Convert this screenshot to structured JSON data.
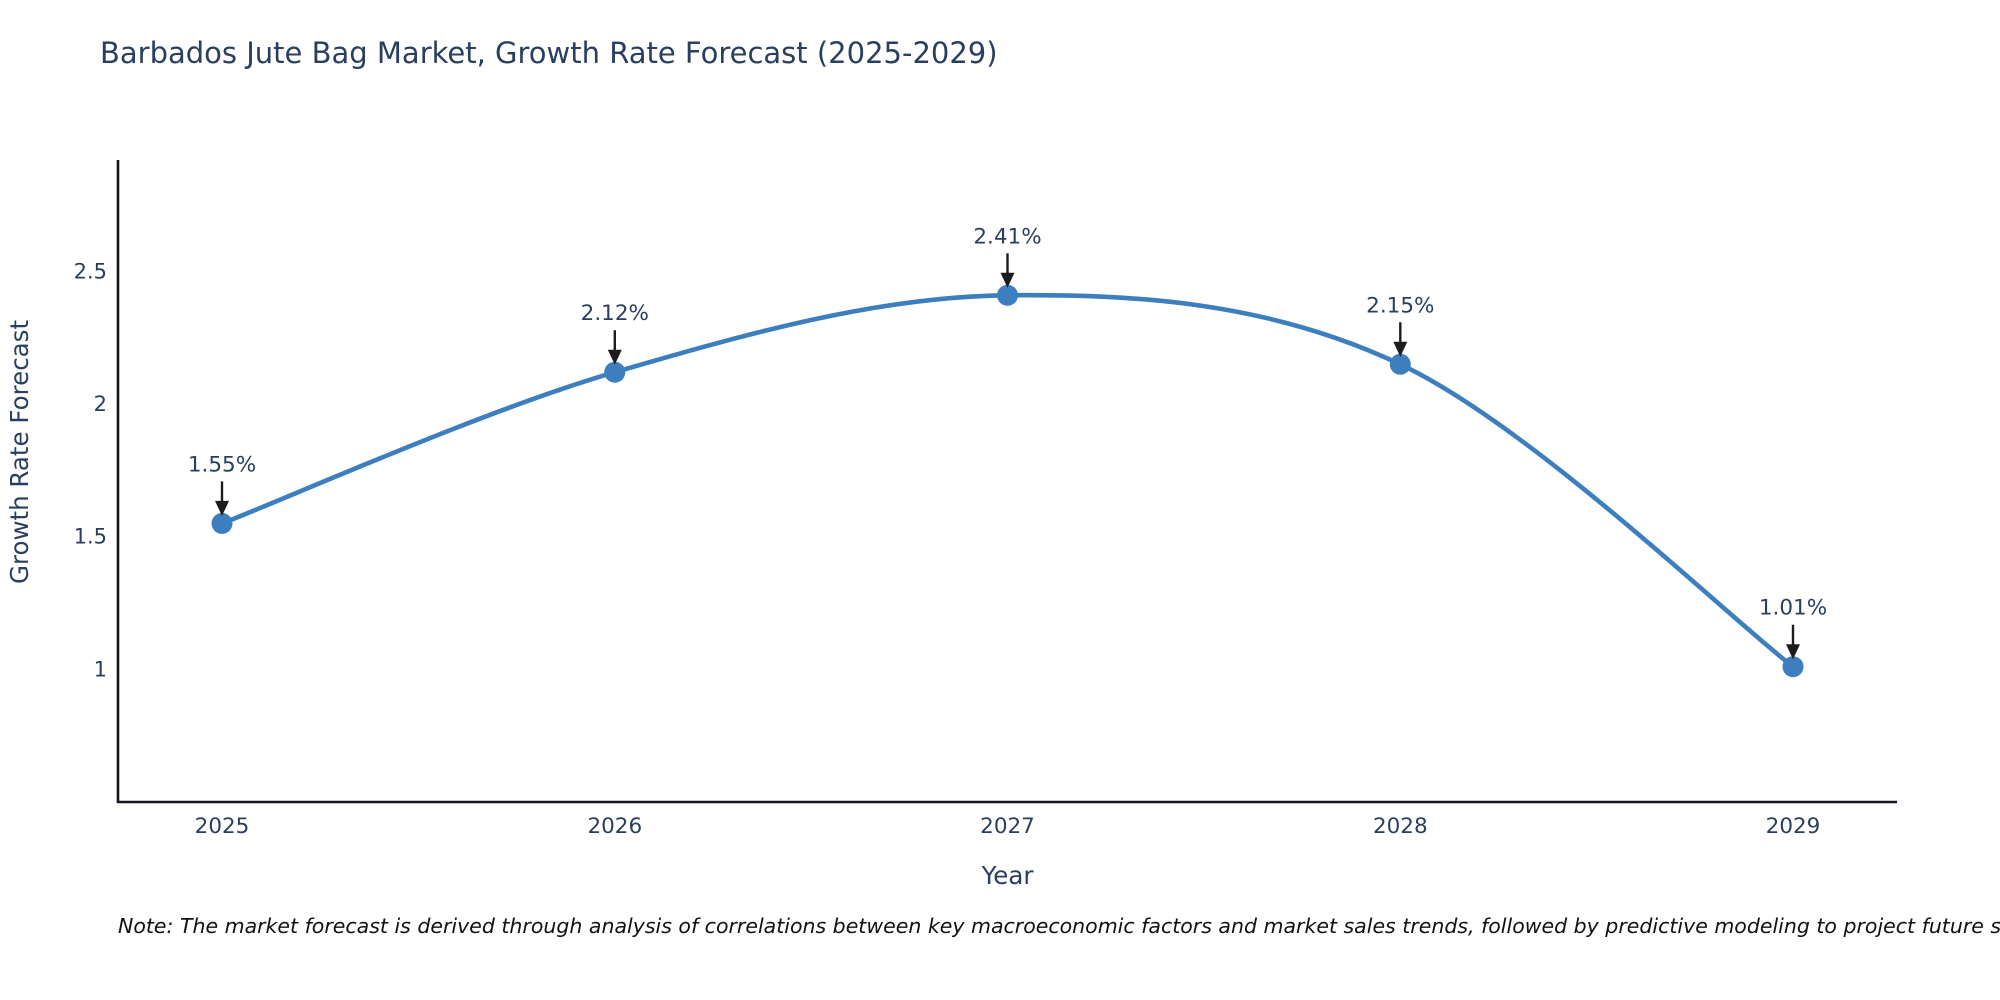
{
  "page": {
    "note": "Note: The market forecast is derived through analysis of correlations between key macroeconomic factors and market sales trends, followed by predictive modeling to project future sales"
  },
  "chart_data": {
    "type": "line",
    "title": "Barbados Jute Bag Market, Growth Rate Forecast (2025-2029)",
    "xlabel": "Year",
    "ylabel": "Growth Rate Forecast",
    "categories": [
      "2025",
      "2026",
      "2027",
      "2028",
      "2029"
    ],
    "series": [
      {
        "name": "Growth Rate Forecast",
        "values": [
          1.55,
          2.12,
          2.41,
          2.15,
          1.01
        ]
      }
    ],
    "point_labels": [
      "1.55%",
      "2.12%",
      "2.41%",
      "2.15%",
      "1.01%"
    ],
    "yticks": [
      {
        "value": 1,
        "label": "1"
      },
      {
        "value": 1.5,
        "label": "1.5"
      },
      {
        "value": 2,
        "label": "2"
      },
      {
        "value": 2.5,
        "label": "2.5"
      }
    ],
    "ylim": [
      0.5,
      2.92
    ],
    "line_shape": "spline",
    "grid": false,
    "legend": "none",
    "markers": true,
    "annotations": "value labels with down arrows above each point",
    "colors": {
      "line": "#3d7ebf",
      "marker": "#3d7ebf",
      "title_text": "#2a3f5f",
      "axis_text": "#2a3f5f",
      "annotation_text": "#2a3f5f",
      "arrow": "#1c1c1e",
      "axis_line": "#161620",
      "background": "#ffffff",
      "note_text": "#111111"
    }
  }
}
